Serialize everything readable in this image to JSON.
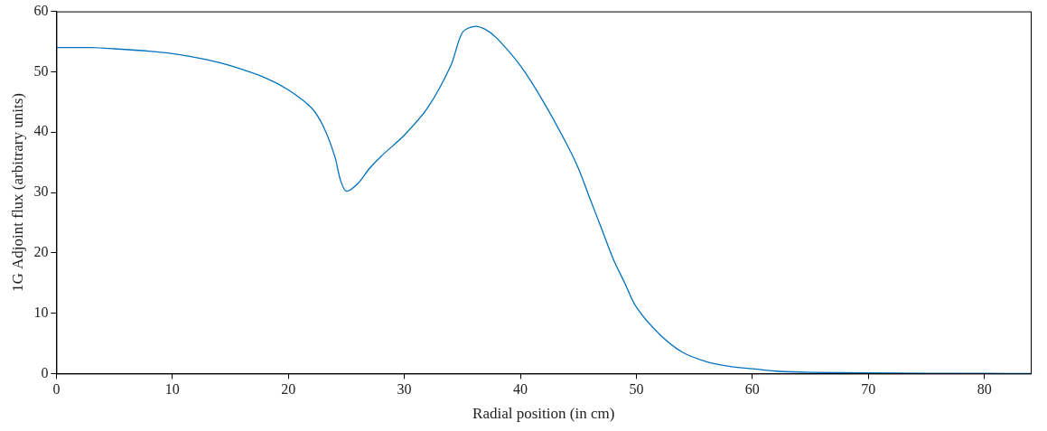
{
  "chart_data": {
    "type": "line",
    "x_label": "Radial position (in cm)",
    "y_label": "1G Adjoint flux (arbitrary units)",
    "x": [
      0,
      3,
      5,
      8,
      10,
      13,
      15,
      18,
      20,
      22,
      23,
      24,
      24.5,
      25,
      26,
      27,
      28,
      30,
      32,
      34,
      35,
      36,
      37,
      38,
      40,
      42,
      44,
      45,
      46,
      47,
      48,
      49,
      50,
      52,
      54,
      56,
      58,
      60,
      62,
      65,
      70,
      75,
      80,
      84
    ],
    "series": [
      {
        "name": "1G Adjoint flux",
        "color": "#0072bd",
        "values": [
          54,
          54,
          53.8,
          53.4,
          53,
          52,
          51,
          49,
          47,
          44,
          41,
          36,
          32,
          30.2,
          31.5,
          34,
          36,
          39.5,
          44,
          51,
          56.5,
          57.5,
          57,
          55.5,
          51,
          45,
          38,
          34,
          29,
          24,
          19,
          15,
          11,
          6.5,
          3.5,
          2,
          1.2,
          0.8,
          0.4,
          0.2,
          0.1,
          0.05,
          0.02,
          0
        ]
      }
    ],
    "xlim": [
      0,
      84
    ],
    "xticks": [
      0,
      10,
      20,
      30,
      40,
      50,
      60,
      70,
      80
    ],
    "ylim": [
      0,
      60
    ],
    "yticks": [
      0,
      10,
      20,
      30,
      40,
      50,
      60
    ],
    "grid": false
  }
}
